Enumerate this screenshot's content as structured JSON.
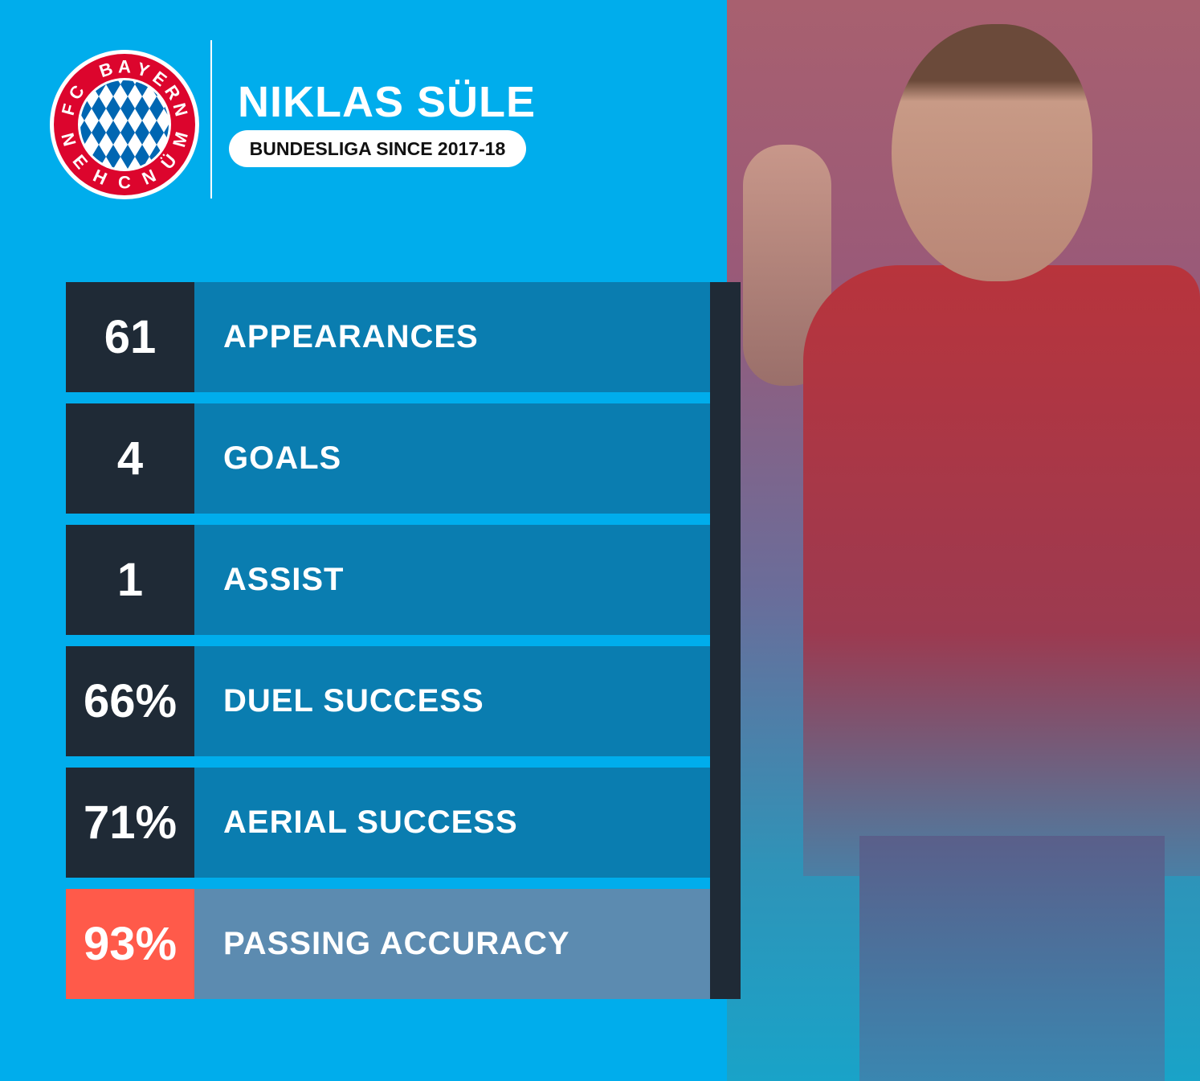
{
  "header": {
    "player_name": "NIKLAS SÜLE",
    "subtitle": "BUNDESLIGA SINCE 2017-18",
    "logo_text_top": "FC BAYERN",
    "logo_text_bottom": "MÜNCHEN"
  },
  "colors": {
    "background": "#00adec",
    "dark": "#1f2a36",
    "label_bg": "#0a7db0",
    "highlight_num": "#ff5a4a",
    "highlight_label": "#5c8bb0",
    "logo_red": "#dc052d",
    "logo_blue": "#0066b2"
  },
  "stats": [
    {
      "value": "61",
      "label": "APPEARANCES"
    },
    {
      "value": "4",
      "label": "GOALS"
    },
    {
      "value": "1",
      "label": "ASSIST"
    },
    {
      "value": "66%",
      "label": "DUEL SUCCESS"
    },
    {
      "value": "71%",
      "label": "AERIAL SUCCESS"
    },
    {
      "value": "93%",
      "label": "PASSING ACCURACY",
      "highlight": true
    }
  ]
}
